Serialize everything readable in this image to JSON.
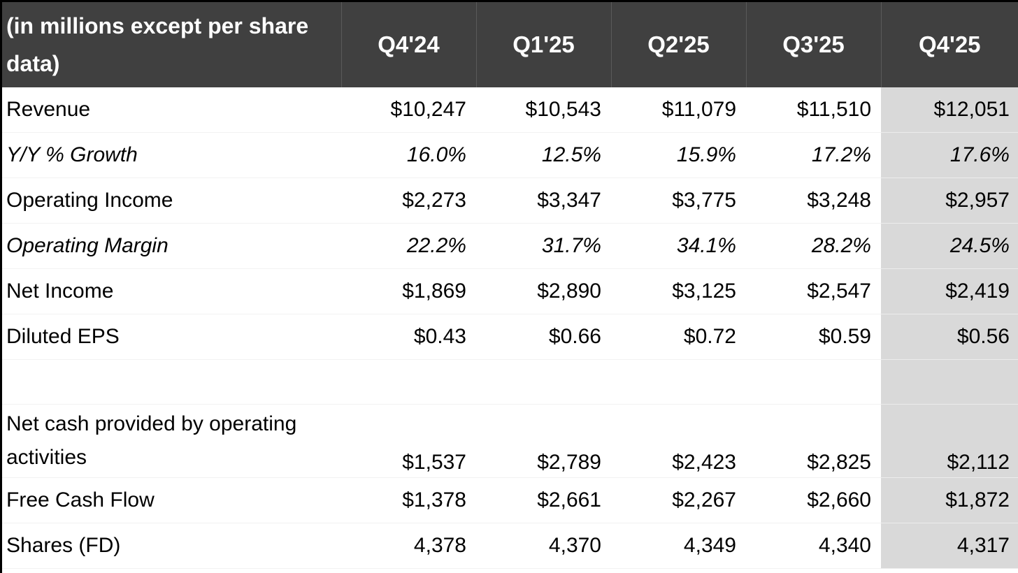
{
  "table": {
    "header": {
      "label": "(in millions except per share data)",
      "quarters": [
        "Q4'24",
        "Q1'25",
        "Q2'25",
        "Q3'25",
        "Q4'25"
      ]
    },
    "rows": [
      {
        "label": "Revenue",
        "values": [
          "$10,247",
          "$10,543",
          "$11,079",
          "$11,510",
          "$12,051"
        ]
      },
      {
        "label": "Y/Y % Growth",
        "values": [
          "16.0%",
          "12.5%",
          "15.9%",
          "17.2%",
          "17.6%"
        ]
      },
      {
        "label": "Operating Income",
        "values": [
          "$2,273",
          "$3,347",
          "$3,775",
          "$3,248",
          "$2,957"
        ]
      },
      {
        "label": "Operating Margin",
        "values": [
          "22.2%",
          "31.7%",
          "34.1%",
          "28.2%",
          "24.5%"
        ]
      },
      {
        "label": "Net Income",
        "values": [
          "$1,869",
          "$2,890",
          "$3,125",
          "$2,547",
          "$2,419"
        ]
      },
      {
        "label": "Diluted EPS",
        "values": [
          "$0.43",
          "$0.66",
          "$0.72",
          "$0.59",
          "$0.56"
        ]
      },
      {
        "label": "",
        "values": [
          "",
          "",
          "",
          "",
          ""
        ]
      },
      {
        "label": "Net cash provided by operating activities",
        "values": [
          "$1,537",
          "$2,789",
          "$2,423",
          "$2,825",
          "$2,112"
        ]
      },
      {
        "label": "Free Cash Flow",
        "values": [
          "$1,378",
          "$2,661",
          "$2,267",
          "$2,660",
          "$1,872"
        ]
      },
      {
        "label": "Shares (FD)",
        "values": [
          "4,378",
          "4,370",
          "4,349",
          "4,340",
          "4,317"
        ]
      }
    ]
  },
  "colors": {
    "header_bg": "#404040",
    "header_text": "#ffffff",
    "highlight_column_bg": "#d9d9d9"
  }
}
